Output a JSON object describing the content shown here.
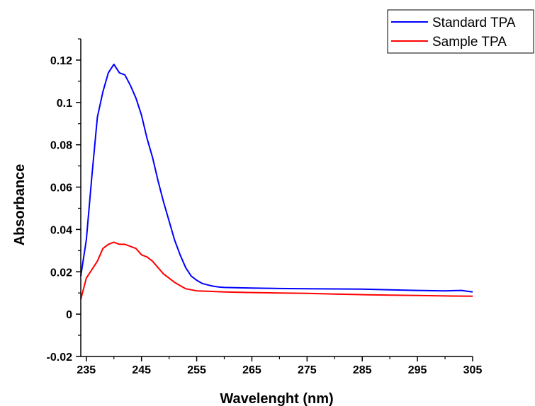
{
  "chart_data": {
    "type": "line",
    "xlabel": "Wavelenght (nm)",
    "ylabel": "Absorbance",
    "xlim": [
      234,
      305
    ],
    "ylim": [
      -0.02,
      0.13
    ],
    "xticks": [
      235,
      245,
      255,
      265,
      275,
      285,
      295,
      305
    ],
    "xtick_labels": [
      "235",
      "245",
      "255",
      "265",
      "275",
      "285",
      "295",
      "305"
    ],
    "yticks": [
      -0.02,
      0,
      0.02,
      0.04,
      0.06,
      0.08,
      0.1,
      0.12
    ],
    "ytick_labels": [
      "-0.02",
      "0",
      "0.02",
      "0.04",
      "0.06",
      "0.08",
      "0.1",
      "0.12"
    ],
    "grid": false,
    "legend_position": "top-right",
    "series": [
      {
        "name": "Standard TPA",
        "color": "#0000ff",
        "x": [
          234,
          235,
          236,
          237,
          238,
          239,
          240,
          241,
          242,
          243,
          244,
          245,
          246,
          247,
          248,
          249,
          250,
          251,
          252,
          253,
          254,
          255,
          256,
          257,
          258,
          259,
          260,
          262,
          265,
          268,
          270,
          275,
          280,
          285,
          290,
          295,
          300,
          303,
          305
        ],
        "y": [
          0.018,
          0.035,
          0.065,
          0.093,
          0.105,
          0.114,
          0.118,
          0.114,
          0.113,
          0.108,
          0.102,
          0.094,
          0.083,
          0.074,
          0.063,
          0.053,
          0.044,
          0.035,
          0.028,
          0.022,
          0.018,
          0.016,
          0.0145,
          0.0138,
          0.0132,
          0.0128,
          0.0126,
          0.0125,
          0.0123,
          0.0122,
          0.0121,
          0.012,
          0.0119,
          0.0118,
          0.0115,
          0.0112,
          0.011,
          0.0112,
          0.0105
        ]
      },
      {
        "name": "Sample TPA",
        "color": "#ff0000",
        "x": [
          234,
          235,
          236,
          237,
          238,
          239,
          240,
          241,
          242,
          243,
          244,
          245,
          246,
          247,
          248,
          249,
          250,
          251,
          252,
          253,
          254,
          255,
          257,
          260,
          265,
          270,
          275,
          280,
          285,
          290,
          295,
          300,
          305
        ],
        "y": [
          0.007,
          0.017,
          0.021,
          0.025,
          0.031,
          0.033,
          0.034,
          0.033,
          0.033,
          0.032,
          0.031,
          0.028,
          0.027,
          0.025,
          0.022,
          0.019,
          0.017,
          0.015,
          0.0135,
          0.012,
          0.0115,
          0.011,
          0.0108,
          0.0105,
          0.0102,
          0.01,
          0.0098,
          0.0095,
          0.0092,
          0.009,
          0.0088,
          0.0086,
          0.0085
        ]
      }
    ]
  }
}
